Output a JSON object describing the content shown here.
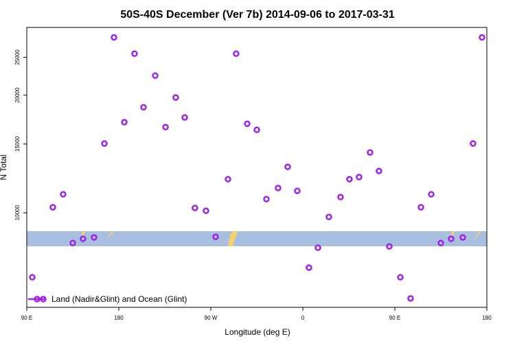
{
  "chart_data": {
    "type": "scatter",
    "title": "50S-40S December (Ver 7b)   2014-09-06 to 2017-03-31",
    "x_label": "Longitude (deg E)",
    "y_label": "N Total",
    "series": [
      {
        "name": "Land (Nadir&Glint) and Ocean (Glint)",
        "color": "#a020f0",
        "x": [
          95.4,
          115.5,
          125.6,
          135,
          145,
          155.8,
          165.9,
          175.3,
          185.4,
          195.4,
          204.2,
          215.6,
          225.7,
          235.7,
          244.5,
          254.5,
          265.3,
          274.7,
          286.8,
          294.8,
          305.6,
          315,
          324.4,
          335.8,
          345.2,
          354.6,
          366,
          374.8,
          385.5,
          396.9,
          405.6,
          415,
          425.8,
          434.5,
          444.6,
          455.4,
          465.4,
          475.5,
          485.6,
          495,
          505,
          516.5,
          526.5,
          535.3
        ],
        "values": [
          6840,
          10330,
          11150,
          8370,
          8580,
          8650,
          15040,
          28100,
          17050,
          25530,
          18620,
          22440,
          16570,
          19720,
          17530,
          10290,
          10120,
          8680,
          12190,
          25530,
          16900,
          16300,
          10840,
          11570,
          13110,
          11380,
          7240,
          8140,
          9760,
          10970,
          12190,
          12340,
          14270,
          12790,
          8200,
          6840,
          6040,
          10330,
          11150,
          8370,
          8580,
          8650,
          15040,
          28100
        ]
      }
    ],
    "xlim": [
      90,
      540
    ],
    "xticks": [
      {
        "value": 90,
        "label": "90 E"
      },
      180,
      {
        "value": 270,
        "label": "90 W"
      },
      {
        "value": 360,
        "label": "0"
      },
      {
        "value": 450,
        "label": "90 E"
      },
      {
        "value": 540,
        "label": "180"
      }
    ],
    "ylim": [
      5730,
      29800
    ],
    "yticks": [
      10000,
      15000,
      20000,
      25000
    ],
    "ylog": true,
    "legend": "bottom left"
  }
}
